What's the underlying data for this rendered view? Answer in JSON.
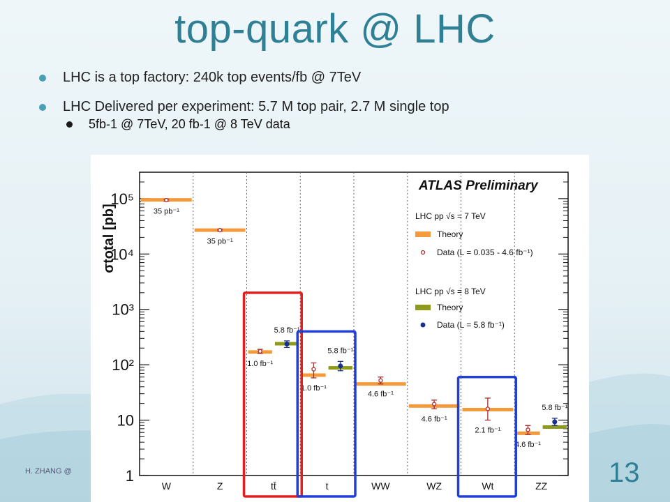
{
  "slide": {
    "title": "top-quark @ LHC",
    "bullets": [
      {
        "level": 1,
        "text": "LHC is a top factory: 240k top events/fb @ 7TeV"
      },
      {
        "level": 1,
        "text": "LHC Delivered per experiment:  5.7 M top pair, 2.7 M single top"
      },
      {
        "level": 2,
        "text": "5fb-1 @ 7TeV, 20 fb-1 @ 8 TeV data"
      }
    ],
    "footer": "H. ZHANG @",
    "page_number": "13"
  },
  "chart_data": {
    "type": "scatter",
    "ylog": true,
    "ylim": [
      1,
      300000
    ],
    "ylabel": "σtotal [pb]",
    "categories": [
      "W",
      "Z",
      "tt̄",
      "t",
      "WW",
      "WZ",
      "Wt",
      "ZZ"
    ],
    "legend": {
      "title": "ATLAS Preliminary",
      "placement": "top-right",
      "group7_header": "LHC pp  √s = 7 TeV",
      "group8_header": "LHC pp  √s = 8 TeV",
      "theory_label": "Theory",
      "data7_label": "Data (L = 0.035 - 4.6 fb⁻¹)",
      "data8_label": "Data (L = 5.8 fb⁻¹)"
    },
    "colors": {
      "theory7": "#f39b3c",
      "theory8": "#8e9b1a",
      "data7": "#a82c2c",
      "data8": "#1a2f8c",
      "highlight_red": "#e02020",
      "highlight_blue": "#1f3fd8"
    },
    "series": [
      {
        "name": "Theory",
        "energy": "7 TeV",
        "values": [
          {
            "cat": "W",
            "y": 95000
          },
          {
            "cat": "Z",
            "y": 27000
          },
          {
            "cat": "tt̄",
            "y": 170
          },
          {
            "cat": "t",
            "y": 65
          },
          {
            "cat": "WW",
            "y": 45
          },
          {
            "cat": "WZ",
            "y": 18
          },
          {
            "cat": "Wt",
            "y": 15.5
          },
          {
            "cat": "ZZ",
            "y": 5.8
          }
        ]
      },
      {
        "name": "Data (L = 0.035 - 4.6 fb⁻¹)",
        "energy": "7 TeV",
        "values": [
          {
            "cat": "W",
            "y": 94000,
            "err": [
              90000,
              98000
            ],
            "label": "35 pb⁻¹"
          },
          {
            "cat": "Z",
            "y": 27000,
            "err": [
              26000,
              28000
            ],
            "label": "35 pb⁻¹"
          },
          {
            "cat": "tt̄",
            "y": 175,
            "err": [
              160,
              190
            ],
            "label": "1.0 fb⁻¹"
          },
          {
            "cat": "t",
            "y": 83,
            "err": [
              58,
              108
            ],
            "label": "1.0 fb⁻¹"
          },
          {
            "cat": "WW",
            "y": 52,
            "err": [
              45,
              60
            ],
            "label": "4.6 fb⁻¹"
          },
          {
            "cat": "WZ",
            "y": 19.5,
            "err": [
              16,
              23
            ],
            "label": "4.6 fb⁻¹"
          },
          {
            "cat": "Wt",
            "y": 16,
            "err": [
              10,
              25
            ],
            "label": "2.1 fb⁻¹"
          },
          {
            "cat": "ZZ",
            "y": 6.7,
            "err": [
              5.5,
              8
            ],
            "label": "4.6 fb⁻¹"
          }
        ]
      },
      {
        "name": "Theory",
        "energy": "8 TeV",
        "values": [
          {
            "cat": "tt̄",
            "y": 240
          },
          {
            "cat": "t",
            "y": 88
          },
          {
            "cat": "ZZ",
            "y": 7.5
          }
        ]
      },
      {
        "name": "Data (L = 5.8 fb⁻¹)",
        "energy": "8 TeV",
        "values": [
          {
            "cat": "tt̄",
            "y": 237,
            "err": [
              205,
              270
            ],
            "label": "5.8 fb⁻¹"
          },
          {
            "cat": "t",
            "y": 95,
            "err": [
              78,
              115
            ],
            "label": "5.8 fb⁻¹"
          },
          {
            "cat": "ZZ",
            "y": 9.3,
            "err": [
              8,
              10.8
            ],
            "label": "5.8 fb⁻¹"
          }
        ]
      }
    ],
    "ytick_labels": [
      "1",
      "10",
      "10²",
      "10³",
      "10⁴",
      "10⁵"
    ],
    "ytick_values": [
      1,
      10,
      100,
      1000,
      10000,
      100000
    ],
    "highlights": [
      {
        "color": "red",
        "categories": [
          "tt̄"
        ]
      },
      {
        "color": "blue",
        "categories": [
          "t"
        ]
      },
      {
        "color": "blue",
        "categories": [
          "Wt"
        ]
      }
    ]
  }
}
